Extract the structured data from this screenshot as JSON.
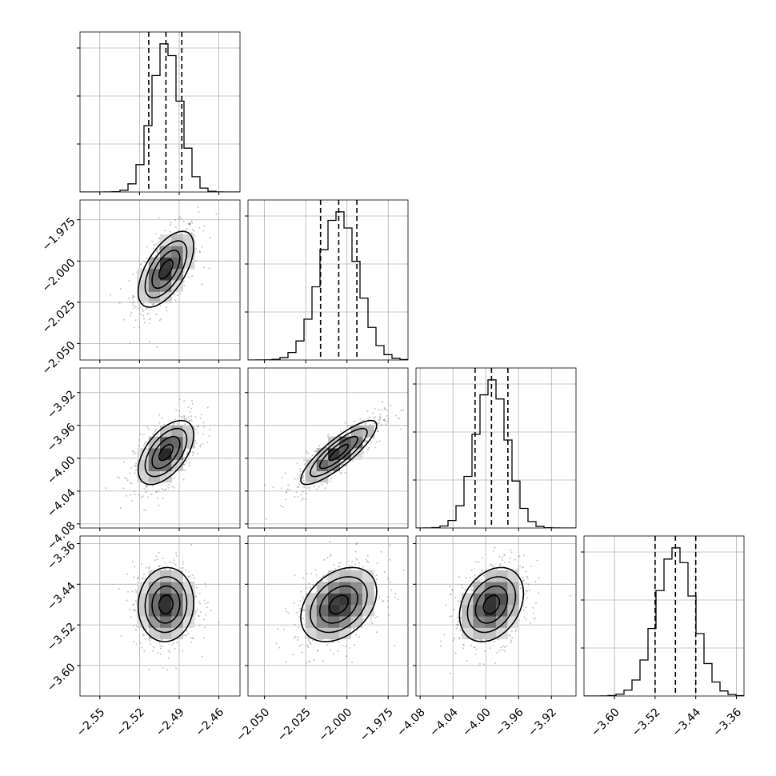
{
  "chart_data": {
    "type": "corner",
    "parameters": [
      {
        "mean": -2.5,
        "std": 0.0105,
        "lim": [
          -2.565,
          -2.444
        ],
        "ticks": [
          -2.55,
          -2.52,
          -2.49,
          -2.46
        ],
        "tick_labels": [
          "−2.55",
          "−2.52",
          "−2.49",
          "−2.46"
        ],
        "quantiles": [
          -2.513,
          -2.5,
          -2.488
        ]
      },
      {
        "mean": -2.005,
        "std": 0.0115,
        "lim": [
          -2.06,
          -1.963
        ],
        "ticks": [
          -2.05,
          -2.025,
          -2.0,
          -1.975
        ],
        "tick_labels": [
          "−2.050",
          "−2.025",
          "−2.000",
          "−1.975"
        ],
        "quantiles": [
          -2.016,
          -2.005,
          -1.994
        ]
      },
      {
        "mean": -3.993,
        "std": 0.0195,
        "lim": [
          -4.085,
          -3.89
        ],
        "ticks": [
          -4.08,
          -4.04,
          -4.0,
          -3.96,
          -3.92
        ],
        "tick_labels": [
          "−4.08",
          "−4.04",
          "−4.00",
          "−3.96",
          "−3.92"
        ],
        "quantiles": [
          -4.013,
          -3.993,
          -3.973
        ]
      },
      {
        "mean": -3.48,
        "std": 0.0365,
        "lim": [
          -3.66,
          -3.345
        ],
        "ticks": [
          -3.6,
          -3.52,
          -3.44,
          -3.36
        ],
        "tick_labels": [
          "−3.60",
          "−3.52",
          "−3.44",
          "−3.36"
        ],
        "quantiles": [
          -3.52,
          -3.48,
          -3.44
        ]
      }
    ],
    "correlations": [
      [
        1.0,
        0.6,
        0.55,
        0.05
      ],
      [
        0.6,
        1.0,
        0.85,
        0.35
      ],
      [
        0.55,
        0.85,
        1.0,
        0.3
      ],
      [
        0.05,
        0.35,
        0.3,
        1.0
      ]
    ],
    "histogram_bins": 20,
    "contour_levels_sigma": [
      0.5,
      1.0,
      1.5,
      2.0
    ],
    "scatter_color": "#555555",
    "line_color": "#000000",
    "grid": true
  }
}
